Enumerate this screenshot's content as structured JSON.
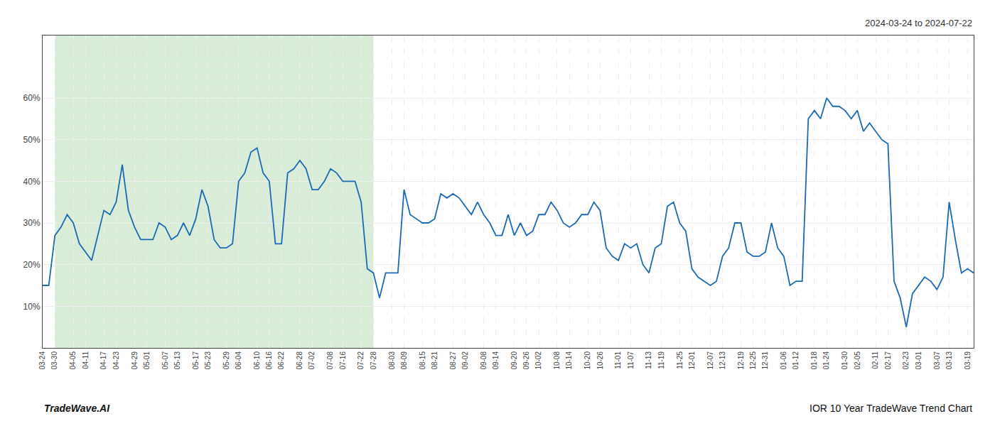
{
  "chart_data": {
    "type": "line",
    "annotations": [
      "2024-03-24 to 2024-07-22",
      "TradeWave.AI",
      "IOR 10 Year TradeWave Trend Chart"
    ],
    "categories": [
      "03-24",
      null,
      "03-30",
      null,
      null,
      "04-05",
      null,
      "04-11",
      null,
      null,
      "04-17",
      null,
      "04-23",
      null,
      null,
      "04-29",
      null,
      "05-01",
      null,
      null,
      "05-07",
      null,
      "05-13",
      null,
      null,
      "05-17",
      null,
      "05-23",
      null,
      null,
      "05-29",
      null,
      "06-04",
      null,
      null,
      "06-10",
      null,
      "06-16",
      null,
      "06-22",
      null,
      null,
      "06-28",
      null,
      "07-02",
      null,
      null,
      "07-08",
      null,
      "07-16",
      null,
      null,
      "07-22",
      null,
      "07-28",
      null,
      null,
      "08-03",
      null,
      "08-09",
      null,
      null,
      "08-15",
      null,
      "08-21",
      null,
      null,
      "08-27",
      null,
      "09-02",
      null,
      null,
      "09-08",
      null,
      "09-14",
      null,
      null,
      "09-20",
      null,
      "09-26",
      null,
      "10-02",
      null,
      null,
      "10-08",
      null,
      "10-14",
      null,
      null,
      "10-20",
      null,
      "10-26",
      null,
      null,
      "11-01",
      null,
      "11-07",
      null,
      null,
      "11-13",
      null,
      "11-19",
      null,
      null,
      "11-25",
      null,
      "12-01",
      null,
      null,
      "12-07",
      null,
      "12-13",
      null,
      null,
      "12-19",
      null,
      "12-25",
      null,
      "12-31",
      null,
      null,
      "01-06",
      null,
      "01-12",
      null,
      null,
      "01-18",
      null,
      "01-24",
      null,
      null,
      "01-30",
      null,
      "02-05",
      null,
      null,
      "02-11",
      null,
      "02-17",
      null,
      null,
      "02-23",
      null,
      "03-01",
      null,
      null,
      "03-07",
      null,
      "03-13",
      null,
      null,
      "03-19",
      null
    ],
    "values": [
      15,
      15,
      27,
      29,
      32,
      30,
      25,
      23,
      21,
      27,
      33,
      32,
      35,
      44,
      33,
      29,
      26,
      26,
      26,
      30,
      29,
      26,
      27,
      30,
      27,
      31,
      38,
      34,
      26,
      24,
      24,
      25,
      40,
      42,
      47,
      48,
      42,
      40,
      25,
      25,
      42,
      43,
      45,
      43,
      38,
      38,
      40,
      43,
      42,
      40,
      40,
      40,
      35,
      19,
      18,
      12,
      18,
      18,
      18,
      38,
      32,
      31,
      30,
      30,
      31,
      37,
      36,
      37,
      36,
      34,
      32,
      35,
      32,
      30,
      27,
      27,
      32,
      27,
      30,
      27,
      28,
      32,
      32,
      35,
      33,
      30,
      29,
      30,
      32,
      32,
      35,
      33,
      24,
      22,
      21,
      25,
      24,
      25,
      20,
      18,
      24,
      25,
      34,
      35,
      30,
      28,
      19,
      17,
      16,
      15,
      16,
      22,
      24,
      30,
      30,
      23,
      22,
      22,
      23,
      30,
      24,
      22,
      15,
      16,
      16,
      55,
      57,
      55,
      60,
      58,
      58,
      57,
      55,
      57,
      52,
      54,
      52,
      50,
      49,
      16,
      12,
      5,
      13,
      15,
      17,
      16,
      14,
      17,
      35,
      26,
      18,
      19,
      18
    ],
    "color": "#1a6ab5",
    "shaded_region": {
      "start": "03-30",
      "end": "07-28",
      "color": "#d8ecd8"
    },
    "ylim": [
      0,
      75
    ],
    "yticks": [
      {
        "value": 10,
        "label": "10%"
      },
      {
        "value": 20,
        "label": "20%"
      },
      {
        "value": 30,
        "label": "30%"
      },
      {
        "value": 40,
        "label": "40%"
      },
      {
        "value": 50,
        "label": "50%"
      },
      {
        "value": 60,
        "label": "60%"
      }
    ],
    "grid": true
  }
}
